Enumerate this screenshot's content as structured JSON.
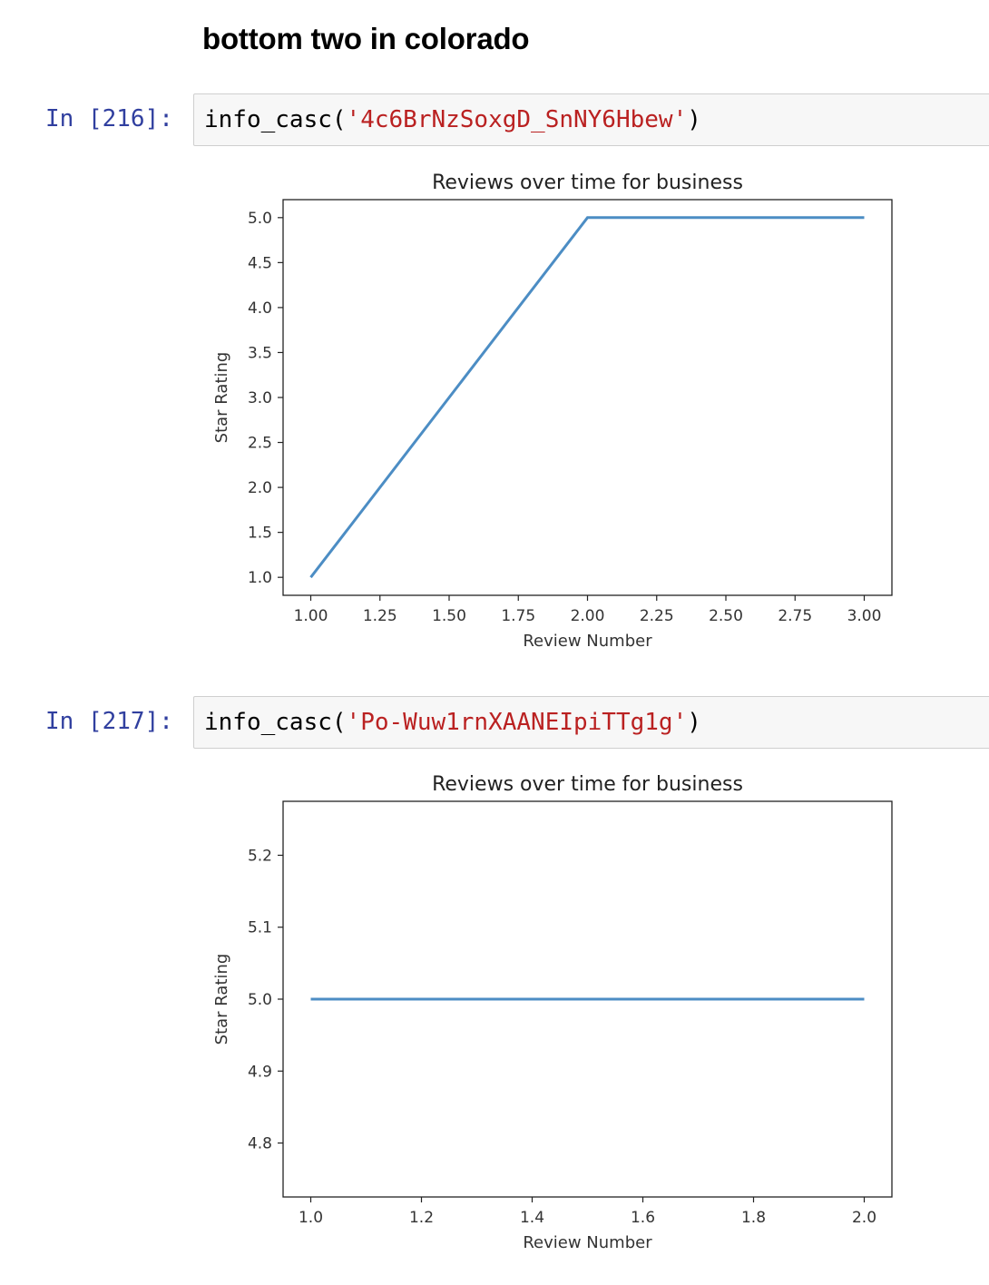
{
  "notebook": {
    "heading": "bottom two in colorado",
    "cells": [
      {
        "prompt": "In [216]:",
        "func": "info_casc(",
        "arg": "'4c6BrNzSoxgD_SnNY6Hbew'",
        "close": ")"
      },
      {
        "prompt": "In [217]:",
        "func": "info_casc(",
        "arg": "'Po-Wuw1rnXAANEIpiTTg1g'",
        "close": ")"
      }
    ]
  },
  "chart_data": [
    {
      "type": "line",
      "title": "Reviews over time for business",
      "xlabel": "Review Number",
      "ylabel": "Star Rating",
      "x": [
        1,
        2,
        3
      ],
      "series": [
        {
          "values": [
            1.0,
            5.0,
            5.0
          ],
          "color": "#4c8dc4"
        }
      ],
      "xticks": [
        "1.00",
        "1.25",
        "1.50",
        "1.75",
        "2.00",
        "2.25",
        "2.50",
        "2.75",
        "3.00"
      ],
      "xtick_values": [
        1.0,
        1.25,
        1.5,
        1.75,
        2.0,
        2.25,
        2.5,
        2.75,
        3.0
      ],
      "yticks": [
        "1.0",
        "1.5",
        "2.0",
        "2.5",
        "3.0",
        "3.5",
        "4.0",
        "4.5",
        "5.0"
      ],
      "ytick_values": [
        1.0,
        1.5,
        2.0,
        2.5,
        3.0,
        3.5,
        4.0,
        4.5,
        5.0
      ],
      "xlim": [
        0.9,
        3.1
      ],
      "ylim": [
        0.8,
        5.2
      ],
      "grid": false
    },
    {
      "type": "line",
      "title": "Reviews over time for business",
      "xlabel": "Review Number",
      "ylabel": "Star Rating",
      "x": [
        1,
        2
      ],
      "series": [
        {
          "values": [
            5.0,
            5.0
          ],
          "color": "#4c8dc4"
        }
      ],
      "xticks": [
        "1.0",
        "1.2",
        "1.4",
        "1.6",
        "1.8",
        "2.0"
      ],
      "xtick_values": [
        1.0,
        1.2,
        1.4,
        1.6,
        1.8,
        2.0
      ],
      "yticks": [
        "4.8",
        "4.9",
        "5.0",
        "5.1",
        "5.2"
      ],
      "ytick_values": [
        4.8,
        4.9,
        5.0,
        5.1,
        5.2
      ],
      "xlim": [
        0.95,
        2.05
      ],
      "ylim": [
        4.725,
        5.275
      ],
      "grid": false
    }
  ]
}
